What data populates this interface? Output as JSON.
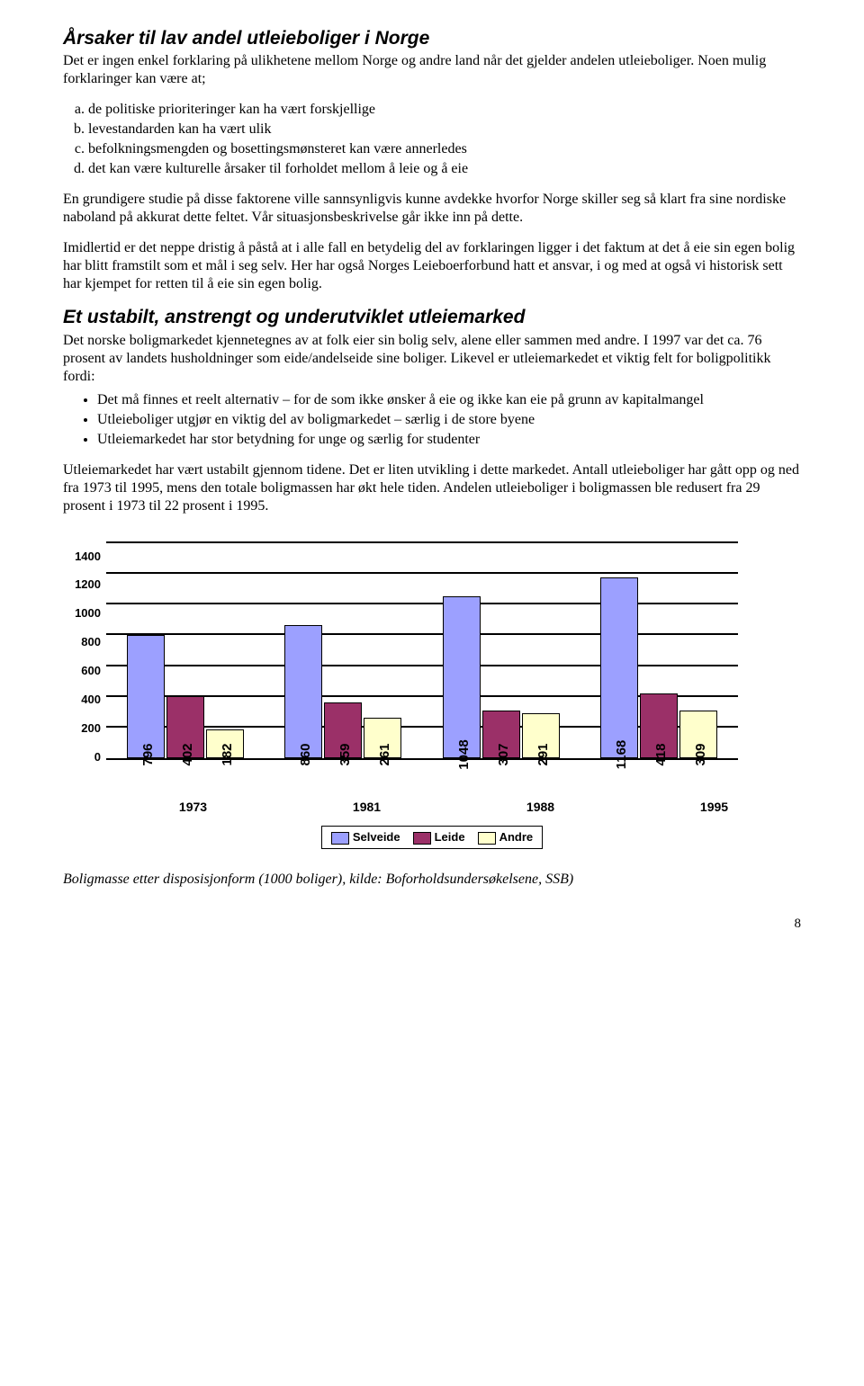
{
  "section1": {
    "title": "Årsaker til lav andel utleieboliger i Norge",
    "intro": "Det er ingen enkel forklaring på ulikhetene mellom Norge og andre land når det gjelder andelen utleieboliger. Noen mulig forklaringer kan være at;",
    "items": [
      "de politiske prioriteringer kan ha vært forskjellige",
      "levestandarden kan ha vært ulik",
      "befolkningsmengden og bosettingsmønsteret kan være annerledes",
      "det kan være kulturelle årsaker til forholdet mellom å leie og å eie"
    ],
    "p1": "En grundigere studie på disse faktorene ville sannsynligvis kunne avdekke hvorfor Norge skiller seg så klart fra sine nordiske naboland på akkurat dette feltet. Vår situasjonsbeskrivelse går ikke inn på dette.",
    "p2": "Imidlertid er det neppe dristig å påstå at i alle fall en betydelig del av forklaringen ligger i det faktum at det å eie sin egen bolig har blitt framstilt som et mål i seg selv. Her har også Norges Leieboerforbund hatt et ansvar, i og med at også vi historisk sett har kjempet for retten til å eie sin egen bolig."
  },
  "section2": {
    "title": "Et ustabilt, anstrengt og underutviklet utleiemarked",
    "p1": "Det norske boligmarkedet kjennetegnes av at folk eier sin bolig selv, alene eller sammen med andre. I 1997 var det ca. 76 prosent av landets husholdninger som eide/andelseide sine boliger. Likevel er utleiemarkedet et viktig felt for boligpolitikk fordi:",
    "bullets": [
      "Det må finnes et reelt alternativ – for de som ikke ønsker å eie og ikke kan eie på grunn av kapitalmangel",
      "Utleieboliger utgjør en viktig del av boligmarkedet – særlig i de store byene",
      "Utleiemarkedet har stor betydning for unge og særlig for studenter"
    ],
    "p2": "Utleiemarkedet har vært ustabilt gjennom tidene. Det er liten utvikling i dette markedet. Antall utleieboliger har gått opp og ned fra 1973 til 1995, mens den totale boligmassen har økt hele tiden. Andelen utleieboliger i boligmassen ble redusert fra 29 prosent i 1973 til 22 prosent i 1995."
  },
  "chart": {
    "type": "bar",
    "categories": [
      "1973",
      "1981",
      "1988",
      "1995"
    ],
    "series": [
      {
        "name": "Selveide",
        "color": "#9ca0ff",
        "values": [
          796,
          860,
          1048,
          1168
        ]
      },
      {
        "name": "Leide",
        "color": "#9b3068",
        "values": [
          402,
          359,
          307,
          418
        ]
      },
      {
        "name": "Andre",
        "color": "#ffffcc",
        "values": [
          182,
          261,
          291,
          309
        ]
      }
    ],
    "y": {
      "min": 0,
      "max": 1400,
      "step": 200
    },
    "gridline_color": "#000000",
    "background": "#ffffff",
    "label_font": "Arial",
    "label_fontsize": 13
  },
  "caption": "Boligmasse etter disposisjonform (1000 boliger), kilde: Boforholdsundersøkelsene, SSB)",
  "page": "8"
}
